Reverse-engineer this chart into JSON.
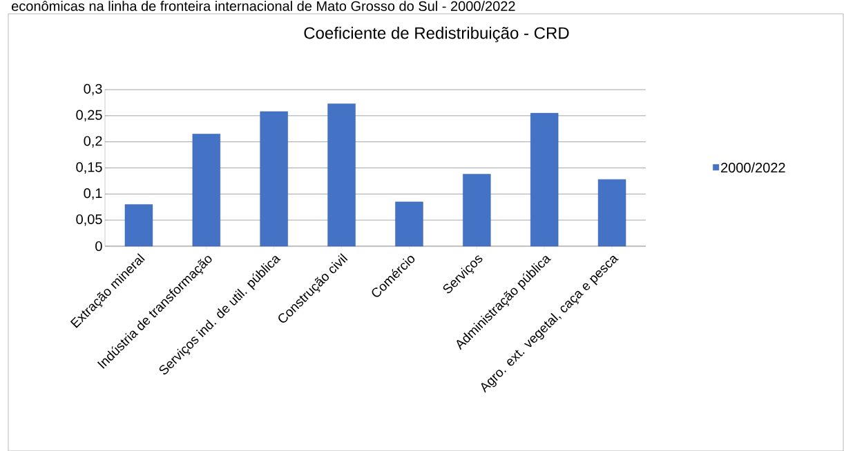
{
  "chart_data": {
    "type": "bar",
    "title": "Coeficiente de Redistribuição - CRD",
    "annotations": [
      "econômicas na linha de fronteira internacional de Mato Grosso do Sul - 2000/2022"
    ],
    "categories": [
      "Extração mineral",
      "Indústria de transformação",
      "Serviços ind. de util. pública",
      "Construção civil",
      "Comércio",
      "Serviços",
      "Administração pública",
      "Agro. ext. vegetal, caça e pesca"
    ],
    "series": [
      {
        "name": "2000/2022",
        "color": "#4472c4",
        "values": [
          0.08,
          0.215,
          0.258,
          0.273,
          0.085,
          0.138,
          0.255,
          0.128
        ]
      }
    ],
    "ylim": [
      0,
      0.3
    ],
    "yticks": [
      {
        "value": 0,
        "label": "0"
      },
      {
        "value": 0.05,
        "label": "0,05"
      },
      {
        "value": 0.1,
        "label": "0,1"
      },
      {
        "value": 0.15,
        "label": "0,15"
      },
      {
        "value": 0.2,
        "label": "0,2"
      },
      {
        "value": 0.25,
        "label": "0,25"
      },
      {
        "value": 0.3,
        "label": "0,3"
      }
    ],
    "grid": "y",
    "legend": "right"
  }
}
